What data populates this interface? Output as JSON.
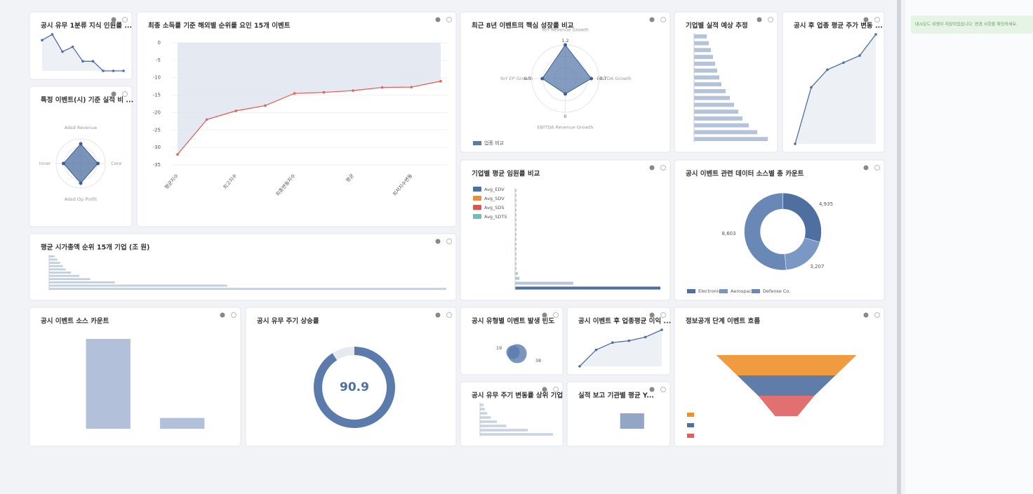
{
  "sidebar": {
    "notice": "대시보드 위젯이 저장되었습니다. 변경 사항을 확인하세요."
  },
  "panels": [
    {
      "type": "line",
      "title": "공시 유무 1분류 지식 인원률 ...",
      "values": [
        62,
        68,
        50,
        55,
        40,
        40,
        30,
        30,
        30
      ],
      "color": "#4f6fa0"
    },
    {
      "type": "radar",
      "title": "특정 이벤트(시) 기준 실적 비 ...",
      "categories": [
        "Adsd Revenue",
        "Core",
        "Adsd Op Profit",
        "Inner"
      ],
      "values": [
        0.8,
        0.7,
        0.8,
        0.7
      ],
      "color": "#4f6fa0"
    },
    {
      "type": "line",
      "title": "최종 소득률 기준 해외별 순위를 요인 15개 이벤트",
      "categories": [
        "평균지수",
        null,
        "최고지수",
        null,
        "최종변동지수",
        null,
        "평균",
        null,
        "최저지수변동",
        null
      ],
      "values": [
        -32,
        -22,
        -19.5,
        -18,
        -14.5,
        -14.2,
        -13.7,
        -12.8,
        -12.7,
        -11
      ],
      "ylim": [
        -35,
        0
      ],
      "yticks": [
        0,
        -5,
        -10,
        -15,
        -20,
        -25,
        -30,
        -35
      ],
      "grid": true,
      "color": "#e8625a"
    },
    {
      "type": "radar",
      "title": "최근 8년 이벤트의 핵심 성장률 비교",
      "categories": [
        "YoY Revenue Growth",
        "EBITDA Growth",
        "EBITDA Revenue Growth",
        "YoY EP Growth"
      ],
      "values": [
        1.2,
        0.7,
        0,
        0.5
      ],
      "rlim": [
        -1,
        1.2
      ],
      "legend": "업종 비교",
      "color": "#5a7bab"
    },
    {
      "type": "hbar",
      "title": "기업별 실적 예상 추정",
      "values": [
        6,
        7,
        8,
        9,
        10,
        11,
        12,
        13,
        15,
        17,
        19,
        21,
        23,
        26,
        30,
        35
      ],
      "color": "#b4c3d9"
    },
    {
      "type": "line",
      "title": "공시 후 업종 평균 주가 변동 ...",
      "values": [
        10,
        42,
        52,
        56,
        60,
        72
      ],
      "color": "#4f6fa0"
    },
    {
      "type": "hbar",
      "title": "평균 시가총액 순위 15개 기업 (조 원)",
      "values": [
        2,
        3,
        4,
        5,
        6,
        8,
        11,
        15,
        24,
        65,
        145
      ],
      "color": "#c3cedf"
    },
    {
      "type": "hbar",
      "title": "기업별 평균 임원률 비교",
      "legend": [
        "Avg_EDV",
        "Avg_SDV",
        "Avg_SDS",
        "Avg_SDTS"
      ],
      "legend_colors": [
        "#4f6fa0",
        "#f0902b",
        "#d9534f",
        "#6cc0b8"
      ],
      "values": [
        1,
        1,
        1,
        1,
        1,
        1,
        1,
        1,
        1,
        1,
        1,
        1,
        1,
        1,
        1,
        1,
        1,
        2,
        3,
        40,
        100
      ],
      "color": "#4f6fa0"
    },
    {
      "type": "donut",
      "title": "공시 이벤트 관련 데이터 소스별 총 카운트",
      "categories": [
        "Electronics",
        "Aerospace",
        "Defense Co."
      ],
      "values": [
        4935,
        3207,
        8603
      ],
      "value_labels": [
        "4,935",
        "3,207",
        "8,603"
      ],
      "colors": [
        "#4f6fa0",
        "#7b98c4",
        "#6a88b6"
      ]
    },
    {
      "type": "bar",
      "title": "공시 이벤트 소스 카운트",
      "values": [
        100,
        12
      ],
      "color": "#9fb2cf"
    },
    {
      "type": "gauge",
      "title": "공시 유무 주기 상승률",
      "value": 90.9,
      "max": 100,
      "color": "#5a7bab"
    },
    {
      "type": "bubble",
      "title": "공시 유형별 이벤트 발생 빈도",
      "values": [
        19,
        38
      ],
      "color": "#5a7bab"
    },
    {
      "type": "line",
      "title": "공시 이벤트 후 업종평균 이익 ...",
      "values": [
        10,
        28,
        36,
        38,
        42,
        50
      ],
      "color": "#4f6fa0",
      "area": true
    },
    {
      "type": "hbar",
      "title": "공시 유무 주기 변동률 상위 기업",
      "values": [
        3,
        4,
        6,
        9,
        14,
        22,
        40,
        61
      ],
      "color": "#c9d3e3"
    },
    {
      "type": "bar",
      "title": "실적 보고 기관별 평균 Y...",
      "values": [
        60
      ],
      "color": "#7890b8"
    },
    {
      "type": "funnel",
      "title": "정보공개 단계 이벤트 흐름",
      "values": [
        100,
        70,
        40
      ],
      "colors": [
        "#f0902b",
        "#4f6fa0",
        "#e06060"
      ]
    }
  ]
}
